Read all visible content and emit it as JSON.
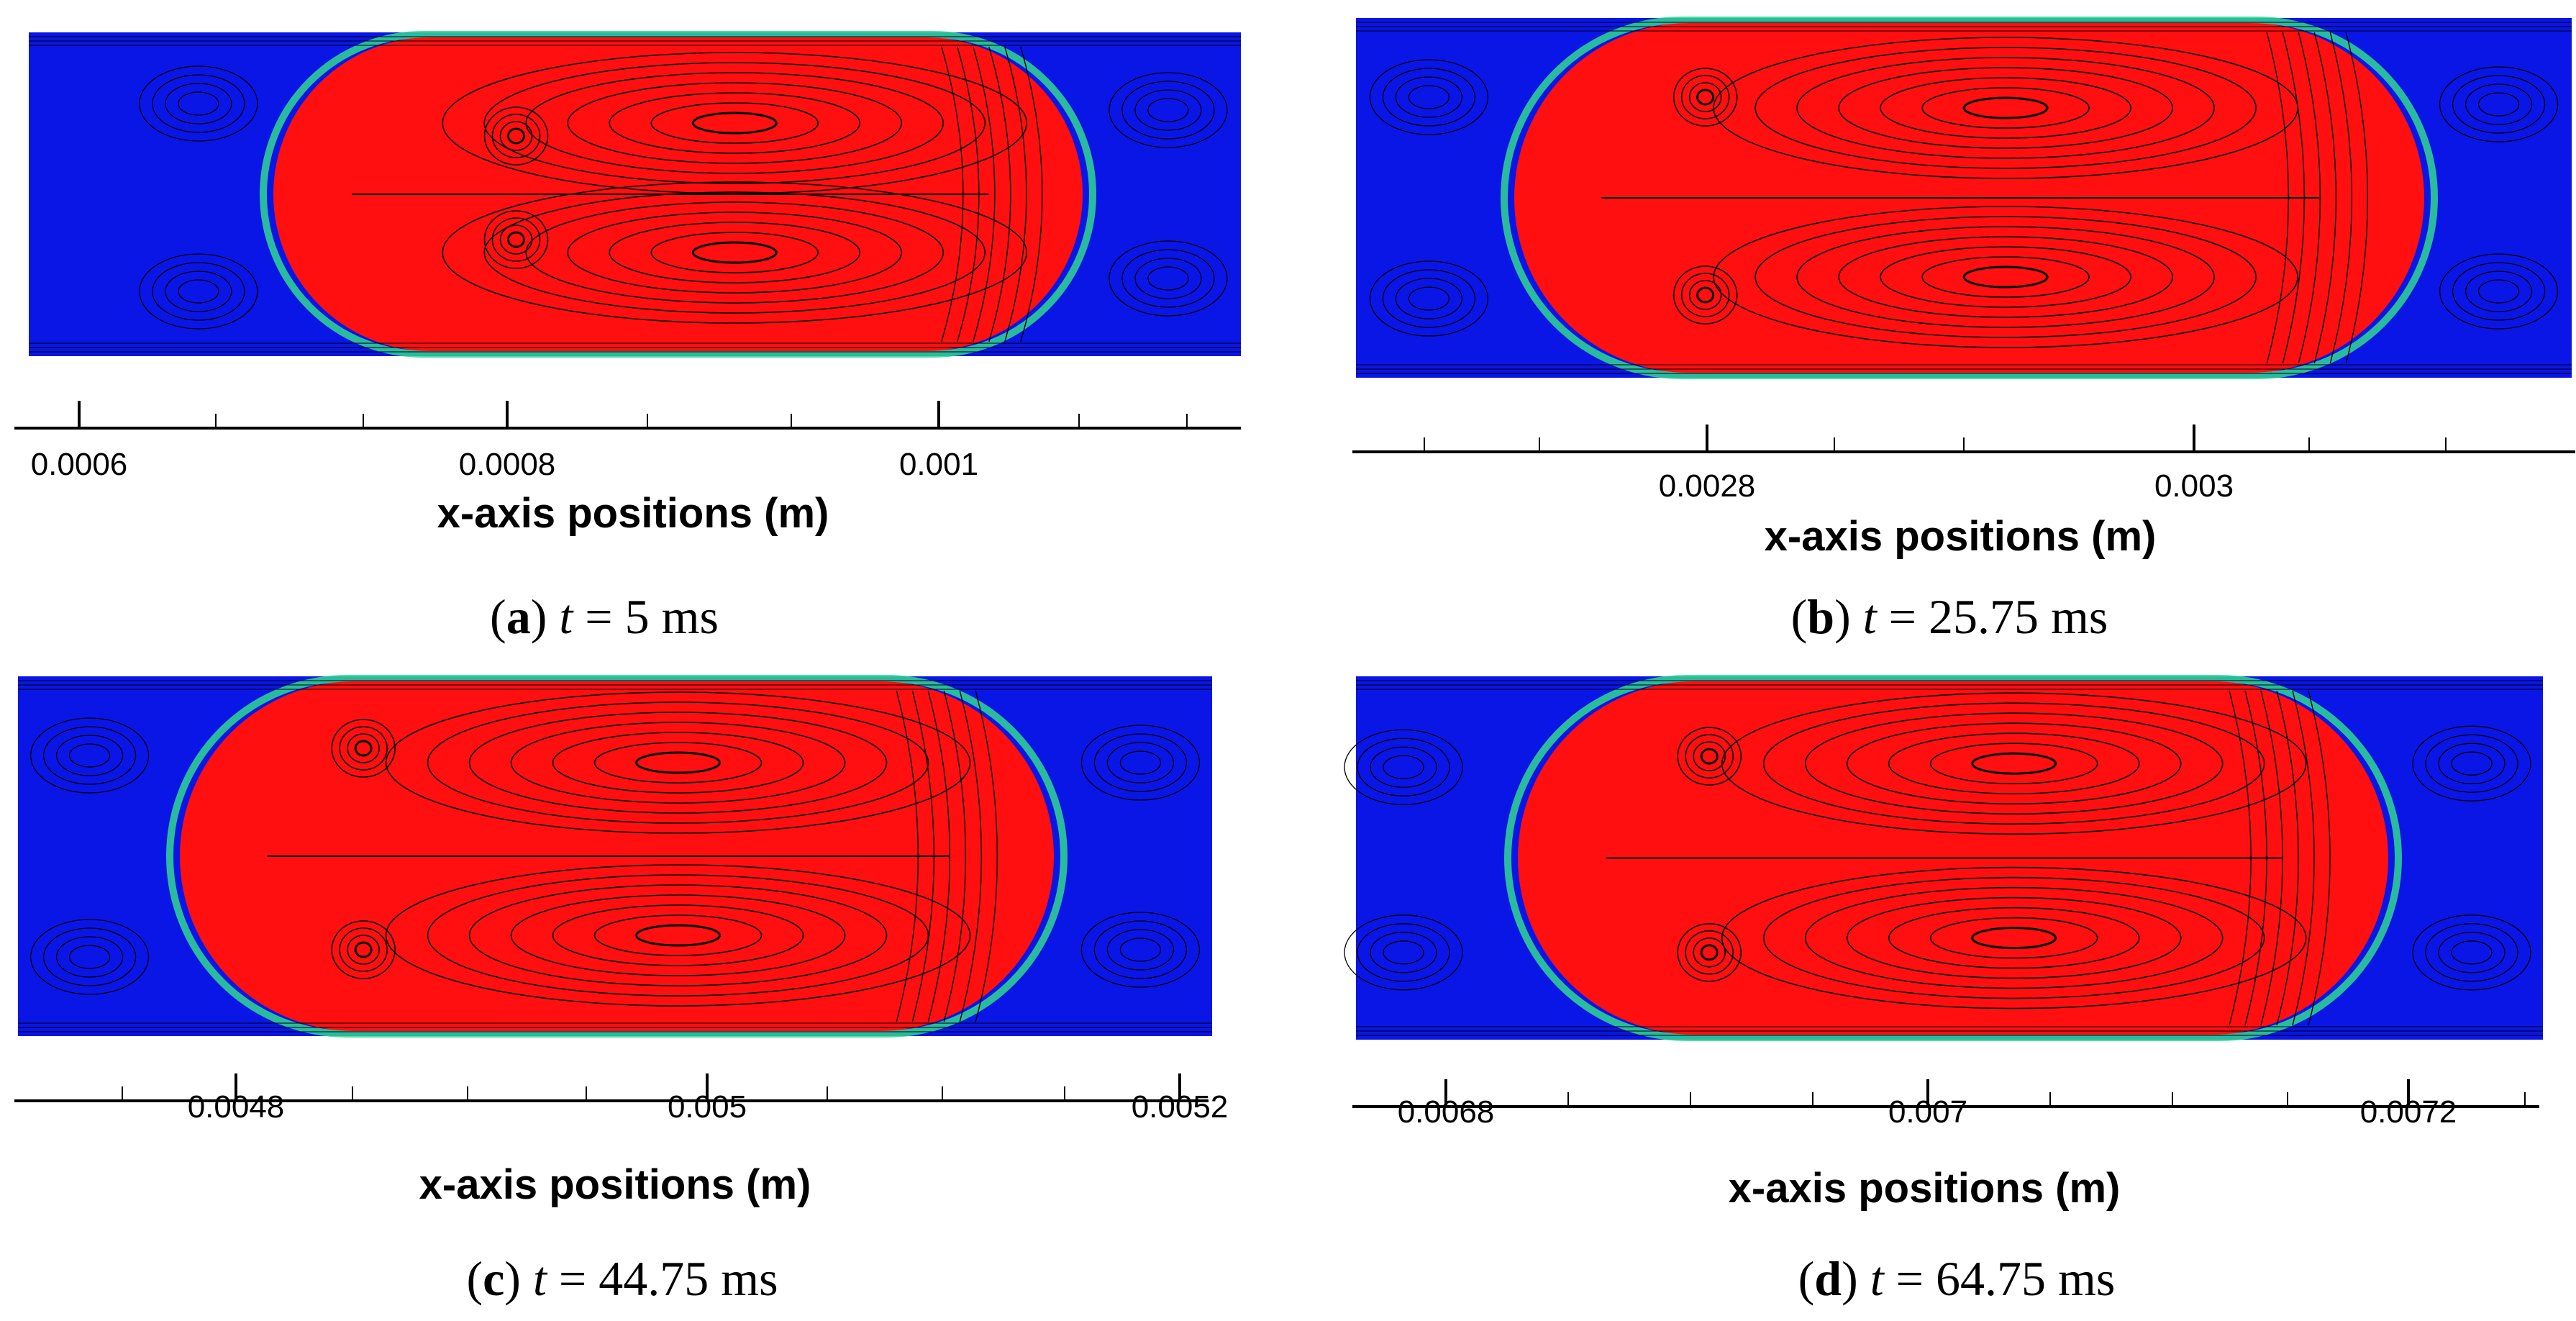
{
  "panels": [
    {
      "letter": "a",
      "time": "5",
      "unit": "ms",
      "axis_title": "x-axis positions (m)",
      "ticks": [
        {
          "label": "0.0006"
        },
        {
          "label": "0.0008"
        },
        {
          "label": "0.001"
        }
      ],
      "colors": {
        "background": "#0a16e6",
        "droplet": "#ff0f0f"
      }
    },
    {
      "letter": "b",
      "time": "25.75",
      "unit": "ms",
      "axis_title": "x-axis positions (m)",
      "ticks": [
        {
          "label": "0.0028"
        },
        {
          "label": "0.003"
        }
      ],
      "colors": {
        "background": "#0a16e6",
        "droplet": "#ff0f0f"
      }
    },
    {
      "letter": "c",
      "time": "44.75",
      "unit": "ms",
      "axis_title": "x-axis positions (m)",
      "ticks": [
        {
          "label": "0.0048"
        },
        {
          "label": "0.005"
        },
        {
          "label": "0.0052"
        }
      ],
      "colors": {
        "background": "#0a16e6",
        "droplet": "#ff0f0f"
      }
    },
    {
      "letter": "d",
      "time": "64.75",
      "unit": "ms",
      "axis_title": "x-axis positions (m)",
      "ticks": [
        {
          "label": "0.0068"
        },
        {
          "label": "0.007"
        },
        {
          "label": "0.0072"
        }
      ],
      "colors": {
        "background": "#0a16e6",
        "droplet": "#ff0f0f"
      }
    }
  ]
}
